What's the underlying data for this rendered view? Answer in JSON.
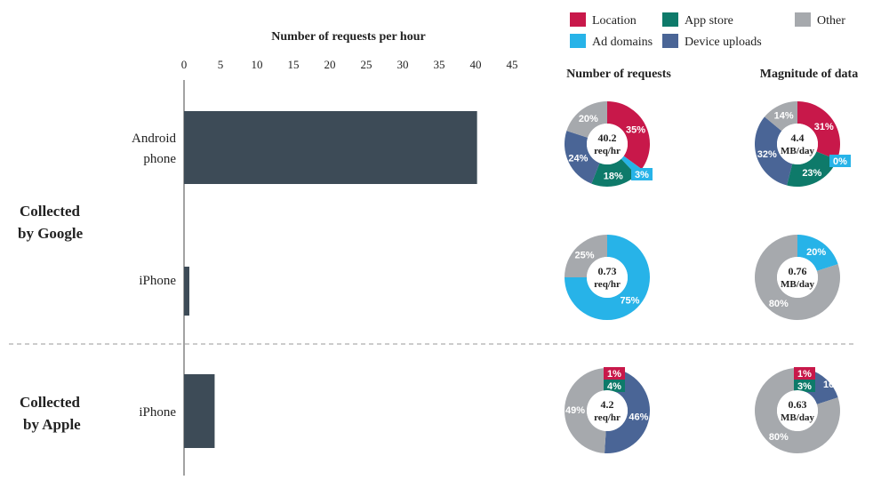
{
  "colors": {
    "Location": "#c8184a",
    "Ad domains": "#27b3e8",
    "App store": "#0e7a6a",
    "Device uploads": "#4a6596",
    "Other": "#a6a9ad",
    "bar": "#3d4b57"
  },
  "chart_data": [
    {
      "type": "bar",
      "orientation": "horizontal",
      "title": "Number of requests per hour",
      "xlim": [
        0,
        45
      ],
      "ticks": [
        0,
        5,
        10,
        15,
        20,
        25,
        30,
        35,
        40,
        45
      ],
      "groups": [
        {
          "label": "Collected by Google",
          "bars": [
            {
              "label": "Android phone",
              "value": 40.2
            },
            {
              "label": "iPhone",
              "value": 0.73
            }
          ]
        },
        {
          "label": "Collected by Apple",
          "bars": [
            {
              "label": "iPhone",
              "value": 4.2
            }
          ]
        }
      ]
    },
    {
      "type": "pie",
      "legend": [
        "Location",
        "App store",
        "Other",
        "Ad domains",
        "Device uploads"
      ],
      "columns": [
        "Number of requests",
        "Magnitude of data"
      ],
      "pies": [
        {
          "row": 0,
          "col": 0,
          "center": [
            "40.2",
            "req/hr"
          ],
          "slices": [
            [
              "Location",
              35
            ],
            [
              "Ad domains",
              3
            ],
            [
              "App store",
              18
            ],
            [
              "Device uploads",
              24
            ],
            [
              "Other",
              20
            ]
          ]
        },
        {
          "row": 0,
          "col": 1,
          "center": [
            "4.4",
            "MB/day"
          ],
          "slices": [
            [
              "Location",
              31
            ],
            [
              "Ad domains",
              0
            ],
            [
              "App store",
              23
            ],
            [
              "Device uploads",
              32
            ],
            [
              "Other",
              14
            ]
          ]
        },
        {
          "row": 1,
          "col": 0,
          "center": [
            "0.73",
            "req/hr"
          ],
          "slices": [
            [
              "Ad domains",
              75
            ],
            [
              "Other",
              25
            ]
          ]
        },
        {
          "row": 1,
          "col": 1,
          "center": [
            "0.76",
            "MB/day"
          ],
          "slices": [
            [
              "Ad domains",
              20
            ],
            [
              "Other",
              80
            ]
          ]
        },
        {
          "row": 2,
          "col": 0,
          "center": [
            "4.2",
            "req/hr"
          ],
          "slices": [
            [
              "Location",
              1
            ],
            [
              "App store",
              4
            ],
            [
              "Device uploads",
              46
            ],
            [
              "Other",
              49
            ]
          ]
        },
        {
          "row": 2,
          "col": 1,
          "center": [
            "0.63",
            "MB/day"
          ],
          "slices": [
            [
              "Location",
              1
            ],
            [
              "App store",
              3
            ],
            [
              "Device uploads",
              16
            ],
            [
              "Other",
              80
            ]
          ]
        }
      ]
    }
  ]
}
